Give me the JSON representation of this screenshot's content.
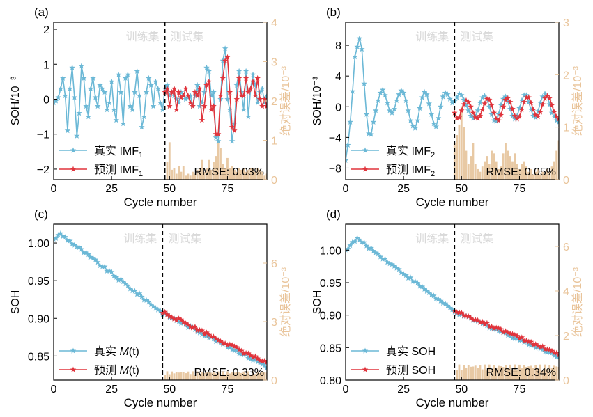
{
  "colors": {
    "true": "#6bb8d6",
    "pred": "#e0343c",
    "err": "#e8c9a4",
    "err_label": "#e9c49a",
    "watermark": "#d9d9d9"
  },
  "chart_data": [
    {
      "id": "a",
      "type": "line",
      "panel_label": "(a)",
      "xlabel": "Cycle number",
      "ylabel": "SOH/10⁻³",
      "y2label": "绝对误差/10⁻³",
      "xlim": [
        0,
        92
      ],
      "ylim": [
        -2.3,
        2.2
      ],
      "y2lim": [
        0,
        4
      ],
      "xticks": [
        "0",
        "25",
        "50",
        "75"
      ],
      "yticks": [
        "−2",
        "−1",
        "0",
        "1",
        "2"
      ],
      "y2ticks": [
        "0",
        "1",
        "2",
        "3",
        "4"
      ],
      "train_label": "训练集",
      "test_label": "测试集",
      "split_x": 48,
      "rmse": "RMSE: 0.03%",
      "legend": [
        {
          "label": "真实 IMF",
          "sub": "1"
        },
        {
          "label": "预测 IMF",
          "sub": "1"
        }
      ],
      "true_series": [
        -0.1,
        -0.05,
        0.05,
        0.3,
        0.6,
        0.1,
        -0.9,
        0.3,
        0.9,
        0.05,
        -1.05,
        -0.4,
        0.95,
        0.6,
        -0.2,
        -0.5,
        0.3,
        0.6,
        0.05,
        -0.2,
        0.4,
        0.3,
        0.2,
        -0.3,
        -0.1,
        0.5,
        -0.3,
        -0.6,
        0.7,
        0.2,
        -0.7,
        0.6,
        0.7,
        -0.2,
        -0.3,
        0.2,
        0.8,
        0.1,
        -0.8,
        -0.5,
        0.2,
        0.6,
        0.4,
        -0.2,
        0.5,
        0.3,
        -0.1,
        -0.3,
        0.3,
        0.4,
        0.1,
        0.2,
        0.1,
        0.0,
        -0.1,
        0.2,
        0.1,
        0.0,
        0.05,
        0.1,
        -0.2,
        0.1,
        0.4,
        -0.2,
        -0.1,
        0.2,
        0.9,
        0.8,
        0.1,
        0.2,
        -1.1,
        -1.2,
        0.0,
        1.1,
        1.45,
        0.0,
        -0.3,
        -1.2,
        -0.7,
        0.4,
        0.8,
        0.2,
        -0.3,
        0.8,
        -0.5,
        0.3,
        0.7,
        0.4,
        -0.1,
        0.2,
        0.3,
        -0.1,
        0.1
      ],
      "pred_series": [
        [
          48,
          0.2
        ],
        [
          49,
          0.3
        ],
        [
          50,
          -0.2
        ],
        [
          51,
          0.2
        ],
        [
          52,
          0.3
        ],
        [
          53,
          -0.3
        ],
        [
          54,
          0.2
        ],
        [
          55,
          0.05
        ],
        [
          56,
          0.1
        ],
        [
          57,
          0.3
        ],
        [
          58,
          0.1
        ],
        [
          59,
          -0.1
        ],
        [
          60,
          -0.2
        ],
        [
          61,
          0.2
        ],
        [
          62,
          0.1
        ],
        [
          63,
          0.3
        ],
        [
          64,
          -0.6
        ],
        [
          65,
          -0.2
        ],
        [
          66,
          0.4
        ],
        [
          67,
          0.5
        ],
        [
          68,
          -0.3
        ],
        [
          69,
          -0.2
        ],
        [
          70,
          -1.0
        ],
        [
          71,
          -1.0
        ],
        [
          72,
          0.1
        ],
        [
          73,
          0.6
        ],
        [
          74,
          1.1
        ],
        [
          75,
          1.2
        ],
        [
          76,
          0.2
        ],
        [
          77,
          -0.8
        ],
        [
          78,
          -0.9
        ],
        [
          79,
          0.0
        ],
        [
          80,
          0.6
        ],
        [
          81,
          0.1
        ],
        [
          82,
          0.1
        ],
        [
          83,
          0.6
        ],
        [
          84,
          0.2
        ],
        [
          85,
          0.3
        ],
        [
          86,
          0.5
        ],
        [
          87,
          0.1
        ],
        [
          88,
          0.6
        ],
        [
          89,
          0.0
        ],
        [
          90,
          -0.2
        ],
        [
          91,
          0.0
        ],
        [
          92,
          -0.2
        ]
      ],
      "err_bars": [
        [
          49,
          0.45
        ],
        [
          50,
          0.95
        ],
        [
          51,
          0.25
        ],
        [
          52,
          0.3
        ],
        [
          53,
          0.15
        ],
        [
          54,
          0.35
        ],
        [
          55,
          0.2
        ],
        [
          56,
          0.35
        ],
        [
          57,
          0.1
        ],
        [
          58,
          0.15
        ],
        [
          59,
          0.1
        ],
        [
          60,
          0.2
        ],
        [
          61,
          0.15
        ],
        [
          62,
          0.25
        ],
        [
          63,
          0.3
        ],
        [
          64,
          0.5
        ],
        [
          65,
          0.2
        ],
        [
          66,
          0.3
        ],
        [
          67,
          0.5
        ],
        [
          68,
          0.25
        ],
        [
          69,
          0.45
        ],
        [
          70,
          0.6
        ],
        [
          71,
          0.95
        ],
        [
          72,
          0.8
        ],
        [
          73,
          0.4
        ],
        [
          74,
          0.3
        ],
        [
          75,
          0.55
        ],
        [
          76,
          0.3
        ],
        [
          77,
          0.35
        ],
        [
          78,
          0.25
        ],
        [
          79,
          0.2
        ],
        [
          80,
          0.3
        ],
        [
          81,
          0.25
        ],
        [
          82,
          0.3
        ],
        [
          83,
          0.2
        ],
        [
          84,
          0.25
        ],
        [
          85,
          0.3
        ],
        [
          86,
          0.3
        ],
        [
          87,
          0.2
        ],
        [
          88,
          0.3
        ],
        [
          89,
          0.25
        ],
        [
          90,
          0.2
        ],
        [
          91,
          0.1
        ],
        [
          92,
          0.15
        ]
      ]
    },
    {
      "id": "b",
      "type": "line",
      "panel_label": "(b)",
      "xlabel": "Cycle number",
      "ylabel": "SOH/10⁻³",
      "y2label": "绝对误差/10⁻³",
      "xlim": [
        0,
        92
      ],
      "ylim": [
        -9.5,
        11
      ],
      "y2lim": [
        0,
        3
      ],
      "xticks": [
        "0",
        "25",
        "50",
        "75"
      ],
      "yticks": [
        "−8",
        "−4",
        "0",
        "4",
        "8"
      ],
      "y2ticks": [
        "0",
        "1",
        "2",
        "3"
      ],
      "train_label": "训练集",
      "test_label": "测试集",
      "split_x": 47,
      "rmse": "RMSE: 0.05%",
      "legend": [
        {
          "label": "真实 IMF",
          "sub": "2"
        },
        {
          "label": "预测 IMF",
          "sub": "2"
        }
      ],
      "true_series": [
        -7.0,
        -5.0,
        -2.0,
        2.0,
        6.5,
        7.8,
        8.9,
        7.5,
        3.0,
        -1.0,
        -3.5,
        -3.6,
        -2.0,
        -0.5,
        0.8,
        1.8,
        2.2,
        1.5,
        0.5,
        -0.5,
        -0.8,
        -0.3,
        0.8,
        1.6,
        2.1,
        1.8,
        0.8,
        -0.5,
        -1.8,
        -2.5,
        -2.8,
        -1.8,
        -0.2,
        1.2,
        1.9,
        1.6,
        0.4,
        -1.0,
        -2.2,
        -2.6,
        -1.5,
        0.0,
        1.3,
        1.8,
        1.6,
        1.0,
        0.5,
        0.7,
        1.2,
        1.7,
        1.5,
        0.9,
        0.2,
        -0.5,
        -1.2,
        -1.5,
        -1.3,
        -0.5,
        0.5,
        1.2,
        1.4,
        1.0,
        0.0,
        -1.0,
        -1.8,
        -1.9,
        -1.0,
        0.2,
        1.0,
        1.3,
        0.7,
        -0.3,
        -1.2,
        -1.6,
        -1.2,
        -0.2,
        0.8,
        1.5,
        1.5,
        0.6,
        -0.4,
        -1.2,
        -1.4,
        -0.6,
        0.5,
        1.3,
        1.7,
        1.4,
        0.3,
        -0.8,
        -1.3,
        -1.8,
        -2.0
      ],
      "pred_series": [
        [
          47,
          -0.8
        ],
        [
          48,
          -1.5
        ],
        [
          49,
          -1.4
        ],
        [
          50,
          -0.5
        ],
        [
          51,
          0.3
        ],
        [
          52,
          0.8
        ],
        [
          53,
          0.6
        ],
        [
          54,
          0.0
        ],
        [
          55,
          -0.8
        ],
        [
          56,
          -1.4
        ],
        [
          57,
          -1.5
        ],
        [
          58,
          -1.2
        ],
        [
          59,
          -0.4
        ],
        [
          60,
          0.4
        ],
        [
          61,
          1.0
        ],
        [
          62,
          0.9
        ],
        [
          63,
          0.2
        ],
        [
          64,
          -0.8
        ],
        [
          65,
          -1.6
        ],
        [
          66,
          -1.8
        ],
        [
          67,
          -1.1
        ],
        [
          68,
          0.0
        ],
        [
          69,
          0.9
        ],
        [
          70,
          1.1
        ],
        [
          71,
          0.6
        ],
        [
          72,
          -0.3
        ],
        [
          73,
          -1.2
        ],
        [
          74,
          -1.6
        ],
        [
          75,
          -1.3
        ],
        [
          76,
          -0.4
        ],
        [
          77,
          0.6
        ],
        [
          78,
          1.2
        ],
        [
          79,
          1.2
        ],
        [
          80,
          0.5
        ],
        [
          81,
          -0.4
        ],
        [
          82,
          -1.1
        ],
        [
          83,
          -1.3
        ],
        [
          84,
          -0.7
        ],
        [
          85,
          0.3
        ],
        [
          86,
          1.1
        ],
        [
          87,
          1.4
        ],
        [
          88,
          1.1
        ],
        [
          89,
          0.2
        ],
        [
          90,
          -0.7
        ],
        [
          91,
          -1.3
        ],
        [
          92,
          -1.6
        ]
      ],
      "err_bars": [
        [
          47,
          0.7
        ],
        [
          48,
          0.85
        ],
        [
          49,
          1.05
        ],
        [
          50,
          1.4
        ],
        [
          51,
          1.0
        ],
        [
          52,
          0.55
        ],
        [
          53,
          0.3
        ],
        [
          54,
          0.45
        ],
        [
          55,
          0.7
        ],
        [
          56,
          0.3
        ],
        [
          57,
          0.2
        ],
        [
          58,
          0.15
        ],
        [
          59,
          0.25
        ],
        [
          60,
          0.35
        ],
        [
          61,
          0.45
        ],
        [
          62,
          0.3
        ],
        [
          63,
          0.55
        ],
        [
          64,
          0.5
        ],
        [
          65,
          0.35
        ],
        [
          66,
          0.2
        ],
        [
          67,
          0.25
        ],
        [
          68,
          0.5
        ],
        [
          69,
          0.7
        ],
        [
          70,
          0.55
        ],
        [
          71,
          0.45
        ],
        [
          72,
          0.35
        ],
        [
          73,
          0.5
        ],
        [
          74,
          0.3
        ],
        [
          75,
          0.2
        ],
        [
          76,
          0.3
        ],
        [
          77,
          0.35
        ],
        [
          78,
          0.25
        ],
        [
          79,
          0.15
        ],
        [
          80,
          0.2
        ],
        [
          81,
          0.1
        ],
        [
          82,
          0.15
        ],
        [
          83,
          0.2
        ],
        [
          84,
          0.1
        ],
        [
          85,
          0.15
        ],
        [
          86,
          0.1
        ],
        [
          87,
          0.2
        ],
        [
          88,
          0.15
        ],
        [
          89,
          0.25
        ],
        [
          90,
          0.35
        ],
        [
          91,
          0.55
        ],
        [
          92,
          0.75
        ]
      ]
    },
    {
      "id": "c",
      "type": "line",
      "panel_label": "(c)",
      "xlabel": "Cycle number",
      "ylabel": "SOH",
      "y2label": "绝对误差/10⁻³",
      "xlim": [
        0,
        92
      ],
      "ylim": [
        0.818,
        1.025
      ],
      "y2lim": [
        0,
        8
      ],
      "xticks": [
        "0",
        "25",
        "50",
        "75"
      ],
      "yticks": [
        "0.85",
        "0.90",
        "0.95",
        "1.00"
      ],
      "y2ticks": [
        "0",
        "3",
        "6"
      ],
      "train_label": "训练集",
      "test_label": "测试集",
      "split_x": 47,
      "rmse": "RMSE: 0.33%",
      "legend": [
        {
          "label": "真实 ",
          "ital": "M",
          "tail": "(t)"
        },
        {
          "label": "预测 ",
          "ital": "M",
          "tail": "(t)"
        }
      ],
      "true_start": 1.005,
      "true_peak": [
        3,
        1.012
      ],
      "true_split_value": 0.907,
      "true_end": 0.836,
      "pred_start": 0.907,
      "pred_end": 0.84,
      "err_level": 0.45
    },
    {
      "id": "d",
      "type": "line",
      "panel_label": "(d)",
      "xlabel": "Cycle number",
      "ylabel": "SOH",
      "y2label": "绝对误差/10⁻³",
      "xlim": [
        0,
        92
      ],
      "ylim": [
        0.8,
        1.04
      ],
      "y2lim": [
        0,
        7
      ],
      "xticks": [
        "0",
        "25",
        "50",
        "75"
      ],
      "yticks": [
        "0.80",
        "0.85",
        "0.90",
        "0.95",
        "1.00"
      ],
      "y2ticks": [
        "0",
        "2",
        "4",
        "6"
      ],
      "train_label": "训练集",
      "test_label": "测试集",
      "split_x": 47,
      "rmse": "RMSE: 0.34%",
      "legend": [
        {
          "label": "真实 SOH"
        },
        {
          "label": "预测 SOH"
        }
      ],
      "true_start": 1.0,
      "true_peak": [
        5,
        1.018
      ],
      "true_split_value": 0.905,
      "true_end": 0.836,
      "pred_start": 0.905,
      "pred_end": 0.84,
      "err_level": 0.7
    }
  ]
}
